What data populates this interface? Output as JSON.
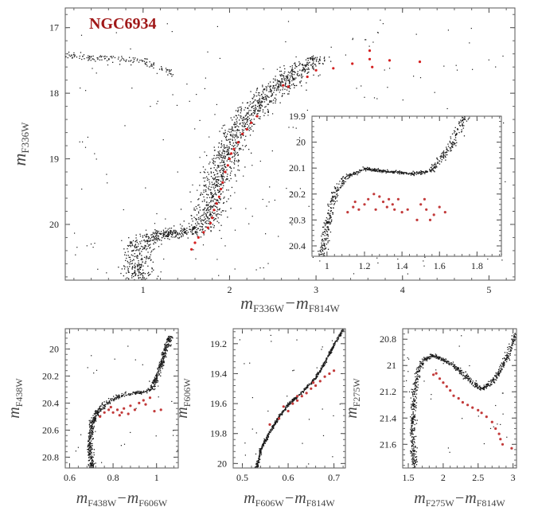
{
  "figure": {
    "title": "NGC6934",
    "colors": {
      "cluster_stars": "#1a1a1a",
      "highlight": "#d42020",
      "highlight_small": "#c23a3a",
      "frame": "#555555",
      "title": "#a01818"
    }
  },
  "chart_data": [
    {
      "id": "main",
      "type": "scatter",
      "title": "NGC6934",
      "xlabel": "m_F336W − m_F814W",
      "ylabel": "m_F336W",
      "x_main": "m",
      "x_sub": "F336W",
      "x_main2": "m",
      "x_sub2": "F814W",
      "y_main": "m",
      "y_sub": "F336W",
      "xlim": [
        0.1,
        5.3
      ],
      "ylim": [
        20.85,
        16.7
      ],
      "xticks": [
        1,
        2,
        3,
        4,
        5
      ],
      "yticks": [
        17,
        18,
        19,
        20
      ],
      "xtick_labels": [
        "1",
        "2",
        "3",
        "4",
        "5"
      ],
      "ytick_labels": [
        "17",
        "18",
        "19",
        "20"
      ],
      "series": [
        {
          "kind": "fiducial",
          "points": [
            [
              0.95,
              20.85
            ],
            [
              0.93,
              20.7
            ],
            [
              0.92,
              20.55
            ],
            [
              0.94,
              20.4
            ],
            [
              1.02,
              20.25
            ],
            [
              1.2,
              20.15
            ],
            [
              1.4,
              20.12
            ],
            [
              1.55,
              20.1
            ],
            [
              1.65,
              20.05
            ],
            [
              1.72,
              19.9
            ],
            [
              1.78,
              19.7
            ],
            [
              1.82,
              19.5
            ],
            [
              1.86,
              19.3
            ],
            [
              1.9,
              19.1
            ],
            [
              1.96,
              18.9
            ],
            [
              2.05,
              18.65
            ],
            [
              2.15,
              18.45
            ],
            [
              2.3,
              18.2
            ],
            [
              2.45,
              18.0
            ],
            [
              2.6,
              17.85
            ],
            [
              2.75,
              17.7
            ],
            [
              2.9,
              17.55
            ],
            [
              3.05,
              17.45
            ]
          ],
          "n": 1700,
          "spread": 0.035,
          "color": "cluster_stars"
        },
        {
          "kind": "hb",
          "points": [
            [
              0.1,
              17.42
            ],
            [
              0.4,
              17.45
            ],
            [
              0.7,
              17.47
            ],
            [
              1.0,
              17.5
            ],
            [
              1.2,
              17.6
            ],
            [
              1.35,
              17.7
            ]
          ],
          "n": 140,
          "spread": 0.025,
          "color": "cluster_stars"
        },
        {
          "kind": "scatter",
          "xlim": [
            0.2,
            5.2
          ],
          "ylim": [
            16.8,
            20.8
          ],
          "n": 250,
          "color": "cluster_stars"
        },
        {
          "kind": "highlight",
          "color": "highlight",
          "points": [
            [
              1.56,
              20.38
            ],
            [
              1.6,
              20.28
            ],
            [
              1.64,
              20.2
            ],
            [
              1.7,
              20.12
            ],
            [
              1.75,
              20.05
            ],
            [
              1.78,
              19.98
            ],
            [
              1.8,
              19.9
            ],
            [
              1.82,
              19.78
            ],
            [
              1.85,
              19.68
            ],
            [
              1.88,
              19.58
            ],
            [
              1.9,
              19.46
            ],
            [
              1.92,
              19.36
            ],
            [
              1.95,
              19.2
            ],
            [
              1.98,
              19.1
            ],
            [
              2.0,
              19.0
            ],
            [
              2.02,
              18.92
            ],
            [
              2.05,
              18.85
            ],
            [
              2.1,
              18.75
            ],
            [
              2.15,
              18.62
            ],
            [
              2.2,
              18.55
            ],
            [
              2.25,
              18.45
            ],
            [
              2.32,
              18.35
            ],
            [
              2.62,
              17.88
            ],
            [
              2.68,
              17.9
            ],
            [
              2.9,
              17.75
            ],
            [
              3.0,
              17.65
            ],
            [
              3.2,
              17.62
            ],
            [
              3.42,
              17.55
            ],
            [
              3.62,
              17.48
            ],
            [
              3.62,
              17.35
            ],
            [
              3.65,
              17.6
            ],
            [
              3.85,
              17.5
            ],
            [
              4.2,
              17.52
            ]
          ]
        }
      ]
    },
    {
      "id": "inset",
      "type": "scatter",
      "xlim": [
        0.92,
        1.93
      ],
      "ylim": [
        20.44,
        19.9
      ],
      "xticks": [
        1,
        1.2,
        1.4,
        1.6,
        1.8
      ],
      "yticks": [
        19.9,
        20,
        20.1,
        20.2,
        20.3,
        20.4
      ],
      "xtick_labels": [
        "1",
        "1.2",
        "1.4",
        "1.6",
        "1.8"
      ],
      "ytick_labels": [
        "19.9",
        "20",
        "20.1",
        "20.2",
        "20.3",
        "20.4"
      ],
      "series": [
        {
          "kind": "fiducial",
          "points": [
            [
              0.97,
              20.44
            ],
            [
              0.99,
              20.35
            ],
            [
              1.02,
              20.25
            ],
            [
              1.05,
              20.18
            ],
            [
              1.1,
              20.13
            ],
            [
              1.2,
              20.1
            ],
            [
              1.3,
              20.11
            ],
            [
              1.45,
              20.12
            ],
            [
              1.55,
              20.11
            ],
            [
              1.62,
              20.05
            ],
            [
              1.68,
              19.98
            ],
            [
              1.72,
              19.92
            ],
            [
              1.75,
              19.88
            ]
          ],
          "n": 700,
          "spread": 0.022,
          "color": "cluster_stars"
        },
        {
          "kind": "highlight",
          "color": "highlight_small",
          "points": [
            [
              1.11,
              20.27
            ],
            [
              1.14,
              20.25
            ],
            [
              1.17,
              20.26
            ],
            [
              1.2,
              20.24
            ],
            [
              1.22,
              20.22
            ],
            [
              1.25,
              20.2
            ],
            [
              1.28,
              20.21
            ],
            [
              1.3,
              20.23
            ],
            [
              1.32,
              20.25
            ],
            [
              1.33,
              20.22
            ],
            [
              1.36,
              20.26
            ],
            [
              1.38,
              20.22
            ],
            [
              1.4,
              20.27
            ],
            [
              1.43,
              20.26
            ],
            [
              1.48,
              20.3
            ],
            [
              1.5,
              20.24
            ],
            [
              1.52,
              20.22
            ],
            [
              1.53,
              20.26
            ],
            [
              1.55,
              20.3
            ],
            [
              1.57,
              20.28
            ],
            [
              1.6,
              20.25
            ],
            [
              1.63,
              20.27
            ],
            [
              1.15,
              20.23
            ],
            [
              1.26,
              20.26
            ],
            [
              1.35,
              20.24
            ]
          ]
        }
      ]
    },
    {
      "id": "bottom-left",
      "type": "scatter",
      "x_main": "m",
      "x_sub": "F438W",
      "x_main2": "m",
      "x_sub2": "F606W",
      "y_main": "m",
      "y_sub": "F438W",
      "xlim": [
        0.58,
        1.1
      ],
      "ylim": [
        20.88,
        19.85
      ],
      "xticks": [
        0.6,
        0.8,
        1
      ],
      "yticks": [
        20,
        20.2,
        20.4,
        20.6,
        20.8
      ],
      "xtick_labels": [
        "0.6",
        "0.8",
        "1"
      ],
      "ytick_labels": [
        "20",
        "20.2",
        "20.4",
        "20.6",
        "20.8"
      ],
      "series": [
        {
          "kind": "fiducial",
          "points": [
            [
              0.7,
              20.88
            ],
            [
              0.69,
              20.7
            ],
            [
              0.7,
              20.55
            ],
            [
              0.73,
              20.45
            ],
            [
              0.78,
              20.38
            ],
            [
              0.85,
              20.33
            ],
            [
              0.92,
              20.32
            ],
            [
              0.97,
              20.3
            ],
            [
              1.0,
              20.2
            ],
            [
              1.03,
              20.05
            ],
            [
              1.06,
              19.9
            ]
          ],
          "n": 750,
          "spread": 0.025,
          "color": "cluster_stars"
        },
        {
          "kind": "scatter",
          "xlim": [
            0.6,
            1.1
          ],
          "ylim": [
            19.9,
            20.85
          ],
          "n": 30,
          "color": "cluster_stars"
        },
        {
          "kind": "highlight",
          "color": "highlight_small",
          "points": [
            [
              0.74,
              20.5
            ],
            [
              0.76,
              20.47
            ],
            [
              0.78,
              20.45
            ],
            [
              0.8,
              20.47
            ],
            [
              0.82,
              20.45
            ],
            [
              0.84,
              20.47
            ],
            [
              0.85,
              20.44
            ],
            [
              0.87,
              20.48
            ],
            [
              0.9,
              20.45
            ],
            [
              0.92,
              20.4
            ],
            [
              0.94,
              20.38
            ],
            [
              0.95,
              20.41
            ],
            [
              0.97,
              20.36
            ],
            [
              0.99,
              20.46
            ],
            [
              1.02,
              20.45
            ],
            [
              0.88,
              20.42
            ],
            [
              0.83,
              20.49
            ],
            [
              0.79,
              20.43
            ]
          ]
        }
      ]
    },
    {
      "id": "bottom-middle",
      "type": "scatter",
      "x_main": "m",
      "x_sub": "F606W",
      "x_main2": "m",
      "x_sub2": "F814W",
      "y_main": "m",
      "y_sub": "F606W",
      "xlim": [
        0.48,
        0.725
      ],
      "ylim": [
        20.03,
        19.1
      ],
      "xticks": [
        0.5,
        0.6,
        0.7
      ],
      "yticks": [
        19.2,
        19.4,
        19.6,
        19.8,
        20
      ],
      "xtick_labels": [
        "0.5",
        "0.6",
        "0.7"
      ],
      "ytick_labels": [
        "19.2",
        "19.4",
        "19.6",
        "19.8",
        "20"
      ],
      "series": [
        {
          "kind": "fiducial",
          "points": [
            [
              0.53,
              20.03
            ],
            [
              0.54,
              19.9
            ],
            [
              0.56,
              19.78
            ],
            [
              0.58,
              19.68
            ],
            [
              0.6,
              19.6
            ],
            [
              0.63,
              19.52
            ],
            [
              0.66,
              19.42
            ],
            [
              0.68,
              19.32
            ],
            [
              0.7,
              19.2
            ],
            [
              0.72,
              19.1
            ]
          ],
          "n": 650,
          "spread": 0.012,
          "color": "cluster_stars"
        },
        {
          "kind": "scatter",
          "xlim": [
            0.48,
            0.72
          ],
          "ylim": [
            19.12,
            20.0
          ],
          "n": 30,
          "color": "cluster_stars"
        },
        {
          "kind": "highlight",
          "color": "highlight_small",
          "points": [
            [
              0.56,
              19.74
            ],
            [
              0.58,
              19.7
            ],
            [
              0.6,
              19.65
            ],
            [
              0.61,
              19.6
            ],
            [
              0.62,
              19.58
            ],
            [
              0.63,
              19.55
            ],
            [
              0.64,
              19.53
            ],
            [
              0.65,
              19.5
            ],
            [
              0.66,
              19.48
            ],
            [
              0.67,
              19.45
            ],
            [
              0.68,
              19.42
            ],
            [
              0.69,
              19.4
            ],
            [
              0.7,
              19.38
            ],
            [
              0.59,
              19.62
            ],
            [
              0.62,
              19.55
            ],
            [
              0.655,
              19.46
            ]
          ]
        }
      ]
    },
    {
      "id": "bottom-right",
      "type": "scatter",
      "x_main": "m",
      "x_sub": "F275W",
      "x_main2": "m",
      "x_sub2": "F814W",
      "y_main": "m",
      "y_sub": "F275W",
      "xlim": [
        1.42,
        3.05
      ],
      "ylim": [
        21.78,
        20.72
      ],
      "xticks": [
        1.5,
        2,
        2.5,
        3
      ],
      "yticks": [
        20.8,
        21,
        21.2,
        21.4,
        21.6
      ],
      "xtick_labels": [
        "1.5",
        "2",
        "2.5",
        "3"
      ],
      "ytick_labels": [
        "20.8",
        "21",
        "21.2",
        "21.4",
        "21.6"
      ],
      "series": [
        {
          "kind": "fiducial",
          "points": [
            [
              1.58,
              21.78
            ],
            [
              1.56,
              21.5
            ],
            [
              1.57,
              21.25
            ],
            [
              1.62,
              21.05
            ],
            [
              1.72,
              20.95
            ],
            [
              1.85,
              20.92
            ],
            [
              2.0,
              20.95
            ],
            [
              2.2,
              21.02
            ],
            [
              2.4,
              21.12
            ],
            [
              2.55,
              21.18
            ],
            [
              2.7,
              21.12
            ],
            [
              2.85,
              21.0
            ],
            [
              2.95,
              20.88
            ],
            [
              3.02,
              20.75
            ]
          ],
          "n": 800,
          "spread": 0.025,
          "color": "cluster_stars"
        },
        {
          "kind": "scatter",
          "xlim": [
            1.45,
            3.0
          ],
          "ylim": [
            20.75,
            21.75
          ],
          "n": 30,
          "color": "cluster_stars"
        },
        {
          "kind": "highlight",
          "color": "highlight_small",
          "points": [
            [
              1.86,
              21.07
            ],
            [
              1.9,
              21.06
            ],
            [
              1.95,
              21.1
            ],
            [
              2.0,
              21.13
            ],
            [
              2.05,
              21.16
            ],
            [
              2.1,
              21.19
            ],
            [
              2.15,
              21.23
            ],
            [
              2.22,
              21.25
            ],
            [
              2.28,
              21.28
            ],
            [
              2.35,
              21.3
            ],
            [
              2.42,
              21.32
            ],
            [
              2.5,
              21.34
            ],
            [
              2.55,
              21.36
            ],
            [
              2.62,
              21.39
            ],
            [
              2.7,
              21.43
            ],
            [
              2.75,
              21.48
            ],
            [
              2.8,
              21.52
            ],
            [
              2.82,
              21.56
            ],
            [
              2.85,
              21.6
            ],
            [
              2.98,
              21.63
            ]
          ]
        }
      ]
    }
  ]
}
